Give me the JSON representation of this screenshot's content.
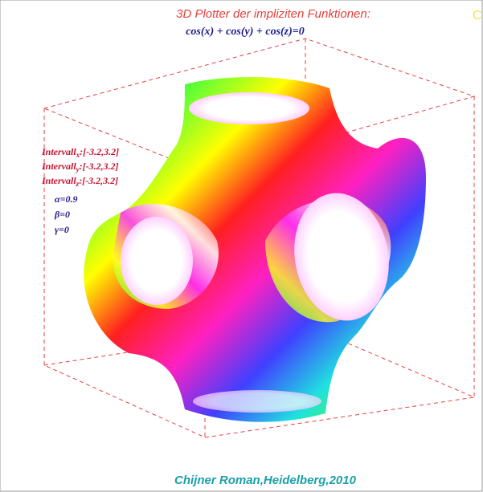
{
  "header": {
    "title": "3D Plotter der impliziten Funktionen:",
    "formula": "cos(x) + cos(y) + cos(z)=0",
    "corner_mark": "C"
  },
  "intervals": [
    {
      "label": "Intervall",
      "axis": "x",
      "range": ":[-3.2,3.2]"
    },
    {
      "label": "Intervall",
      "axis": "y",
      "range": ":[-3.2,3.2]"
    },
    {
      "label": "Intervall",
      "axis": "z",
      "range": ":[-3.2,3.2]"
    }
  ],
  "angles": [
    "α=0.9",
    "β=0",
    "γ=0"
  ],
  "footer": "Chijner Roman,Heidelberg,2010"
}
